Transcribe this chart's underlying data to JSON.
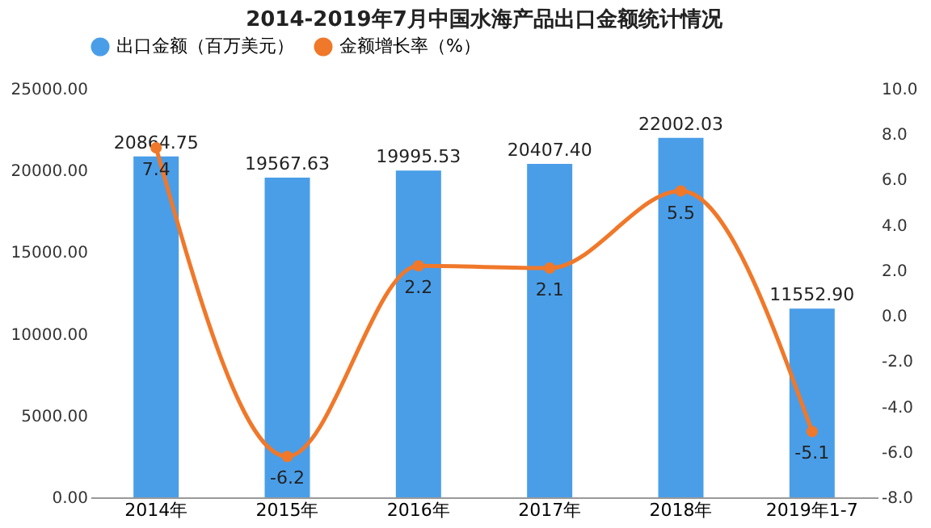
{
  "chart_data": {
    "type": "bar",
    "title": "2014-2019年7月中国水海产品出口金额统计情况",
    "categories": [
      "2014年",
      "2015年",
      "2016年",
      "2017年",
      "2018年",
      "2019年1-7"
    ],
    "series": [
      {
        "name": "出口金额（百万美元）",
        "color": "#4a9ee8",
        "values": [
          20864.75,
          19567.63,
          19995.53,
          20407.4,
          22002.03,
          11552.9
        ],
        "value_labels": [
          "20864.75",
          "19567.63",
          "19995.53",
          "20407.40",
          "22002.03",
          "11552.90"
        ]
      },
      {
        "name": "金额增长率（%）",
        "type": "line",
        "axis": "y2",
        "color": "#f0782a",
        "values": [
          7.4,
          -6.2,
          2.2,
          2.1,
          5.5,
          -5.1
        ]
      }
    ],
    "ylim": [
      0,
      25000
    ],
    "yticks": [
      {
        "value": 0,
        "label": "0.00"
      },
      {
        "value": 5000,
        "label": "5000.00"
      },
      {
        "value": 10000,
        "label": "10000.00"
      },
      {
        "value": 15000,
        "label": "15000.00"
      },
      {
        "value": 20000,
        "label": "20000.00"
      },
      {
        "value": 25000,
        "label": "25000.00"
      }
    ],
    "y2lim": [
      -8,
      10
    ],
    "y2ticks": [
      {
        "value": -8,
        "label": "-8.0"
      },
      {
        "value": -6,
        "label": "-6.0"
      },
      {
        "value": -4,
        "label": "-4.0"
      },
      {
        "value": -2,
        "label": "-2.0"
      },
      {
        "value": 0,
        "label": "0.0"
      },
      {
        "value": 2,
        "label": "2.0"
      },
      {
        "value": 4,
        "label": "4.0"
      },
      {
        "value": 6,
        "label": "6.0"
      },
      {
        "value": 8,
        "label": "8.0"
      },
      {
        "value": 10,
        "label": "10.0"
      }
    ],
    "data_labels": true,
    "legend": "top",
    "marker": "circle",
    "line_style": "solid"
  }
}
